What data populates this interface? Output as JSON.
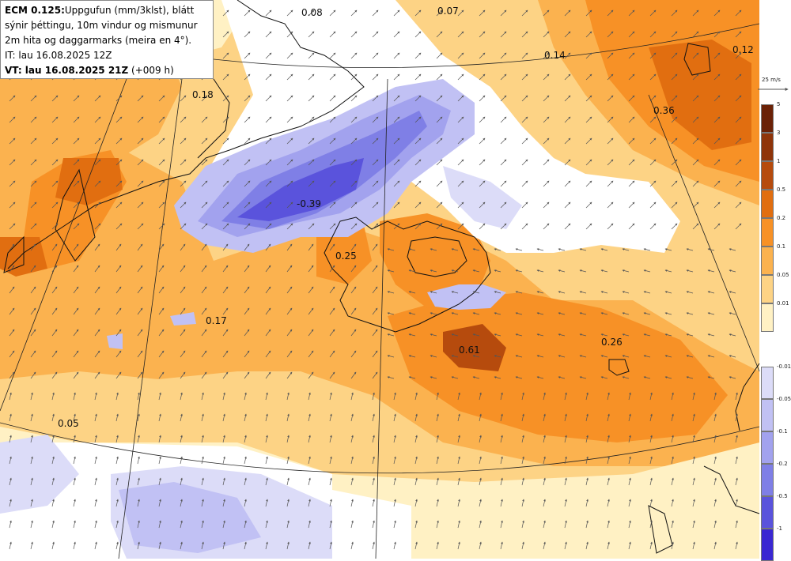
{
  "header": {
    "model": "ECM 0.125:",
    "line1_rest": "Uppgufun (mm/3klst), blátt",
    "line2": "sýnir þéttingu, 10m vindur og mismunur",
    "line3": "2m hita og daggarmarks (meira en 4°).",
    "initial_time": "IT: lau 16.08.2025 12Z",
    "valid_time": "VT: lau 16.08.2025 21Z",
    "lead": "(+009 h)"
  },
  "wind_scale": {
    "label": "25 m/s"
  },
  "legend": {
    "positive": [
      {
        "label": "5",
        "color": "#6b2106"
      },
      {
        "label": "3",
        "color": "#8f3409"
      },
      {
        "label": "1",
        "color": "#b64b0d"
      },
      {
        "label": "0.5",
        "color": "#e16e10"
      },
      {
        "label": "0.2",
        "color": "#f79126"
      },
      {
        "label": "0.1",
        "color": "#fbb24f"
      },
      {
        "label": "0.05",
        "color": "#fdd385"
      },
      {
        "label": "0.01",
        "color": "#fff1c4"
      }
    ],
    "negative": [
      {
        "label": "-0.01",
        "color": "#dcdcf8"
      },
      {
        "label": "-0.05",
        "color": "#c1c1f4"
      },
      {
        "label": "-0.1",
        "color": "#a2a2ee"
      },
      {
        "label": "-0.2",
        "color": "#7f7fe6"
      },
      {
        "label": "-0.5",
        "color": "#5a53dc"
      },
      {
        "label": "-1",
        "color": "#3a27d2"
      }
    ]
  },
  "field_labels": [
    "0.08",
    "0.07",
    "0.14",
    "0.12",
    "0.18",
    "0.36",
    "-0.39",
    "0.25",
    "0.17",
    "0.61",
    "0.26",
    "0.05"
  ],
  "colors": {
    "background": "#fff1c4",
    "land_outline": "#111111",
    "arrow": "#555555"
  }
}
